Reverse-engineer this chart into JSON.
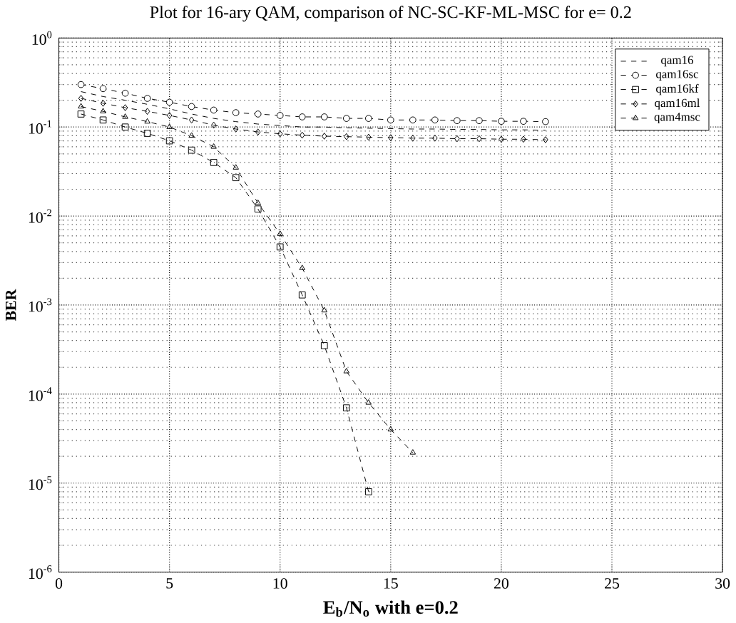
{
  "chart_data": {
    "type": "line",
    "title": "Plot for 16-ary QAM, comparison of NC-SC-KF-ML-MSC for e= 0.2",
    "xlabel": "E$_{b}$/N$_{o}$ with e=0.2",
    "ylabel": "BER",
    "xlim": [
      0,
      30
    ],
    "xticks": [
      0,
      5,
      10,
      15,
      20,
      25,
      30
    ],
    "ylim": [
      1e-06,
      1
    ],
    "yticks": [
      {
        "value": 1e-06,
        "label": "10$^{-6}$"
      },
      {
        "value": 1e-05,
        "label": "10$^{-5}$"
      },
      {
        "value": 0.0001,
        "label": "10$^{-4}$"
      },
      {
        "value": 0.001,
        "label": "10$^{-3}$"
      },
      {
        "value": 0.01,
        "label": "10$^{-2}$"
      },
      {
        "value": 0.1,
        "label": "10$^{-1}$"
      },
      {
        "value": 1,
        "label": "10$^{0}$"
      }
    ],
    "log": "y",
    "grid": true,
    "legend": "top right",
    "series": [
      {
        "name": "qam16",
        "color": "#000000",
        "marker": "none",
        "line_style": "dashed",
        "x": [
          1,
          2,
          3,
          4,
          5,
          6,
          7,
          8,
          9,
          10,
          11,
          12,
          13,
          14,
          15,
          16,
          17,
          18,
          19,
          20,
          21,
          22
        ],
        "values": [
          0.25,
          0.22,
          0.2,
          0.18,
          0.16,
          0.14,
          0.125,
          0.115,
          0.108,
          0.104,
          0.1,
          0.1,
          0.098,
          0.097,
          0.096,
          0.095,
          0.095,
          0.094,
          0.094,
          0.093,
          0.093,
          0.092
        ]
      },
      {
        "name": "qam16sc",
        "color": "#000000",
        "marker": "circle",
        "line_style": "dashed",
        "x": [
          1,
          2,
          3,
          4,
          5,
          6,
          7,
          8,
          9,
          10,
          11,
          12,
          13,
          14,
          15,
          16,
          17,
          18,
          19,
          20,
          21,
          22
        ],
        "values": [
          0.3,
          0.27,
          0.24,
          0.21,
          0.19,
          0.17,
          0.155,
          0.145,
          0.14,
          0.135,
          0.13,
          0.13,
          0.125,
          0.125,
          0.12,
          0.12,
          0.12,
          0.118,
          0.118,
          0.116,
          0.116,
          0.115
        ]
      },
      {
        "name": "qam16kf",
        "color": "#000000",
        "marker": "square",
        "line_style": "dashed",
        "x": [
          1,
          2,
          3,
          4,
          5,
          6,
          7,
          8,
          9,
          10,
          11,
          12,
          13,
          14
        ],
        "values": [
          0.14,
          0.12,
          0.1,
          0.085,
          0.07,
          0.055,
          0.04,
          0.027,
          0.012,
          0.0045,
          0.0013,
          0.00035,
          7e-05,
          8e-06
        ]
      },
      {
        "name": "qam16ml",
        "color": "#000000",
        "marker": "diamond",
        "line_style": "dashed",
        "x": [
          1,
          2,
          3,
          4,
          5,
          6,
          7,
          8,
          9,
          10,
          11,
          12,
          13,
          14,
          15,
          16,
          17,
          18,
          19,
          20,
          21,
          22
        ],
        "values": [
          0.21,
          0.185,
          0.165,
          0.15,
          0.135,
          0.12,
          0.105,
          0.095,
          0.088,
          0.084,
          0.081,
          0.079,
          0.078,
          0.077,
          0.076,
          0.075,
          0.075,
          0.074,
          0.074,
          0.073,
          0.073,
          0.072
        ]
      },
      {
        "name": "qam4msc",
        "color": "#000000",
        "marker": "triangle",
        "line_style": "dashed",
        "x": [
          1,
          2,
          3,
          4,
          5,
          6,
          7,
          8,
          9,
          10,
          11,
          12,
          13,
          14,
          15,
          16
        ],
        "values": [
          0.17,
          0.15,
          0.13,
          0.115,
          0.1,
          0.08,
          0.06,
          0.035,
          0.014,
          0.0063,
          0.0026,
          0.00087,
          0.00018,
          8e-05,
          4e-05,
          2.2e-05
        ]
      }
    ]
  }
}
